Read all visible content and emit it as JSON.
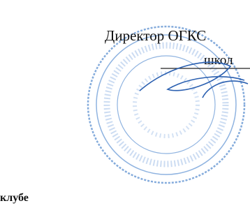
{
  "header": {
    "position": "Директор ОГКС",
    "line2": "школ"
  },
  "body": {
    "fragment": "клубе"
  }
}
